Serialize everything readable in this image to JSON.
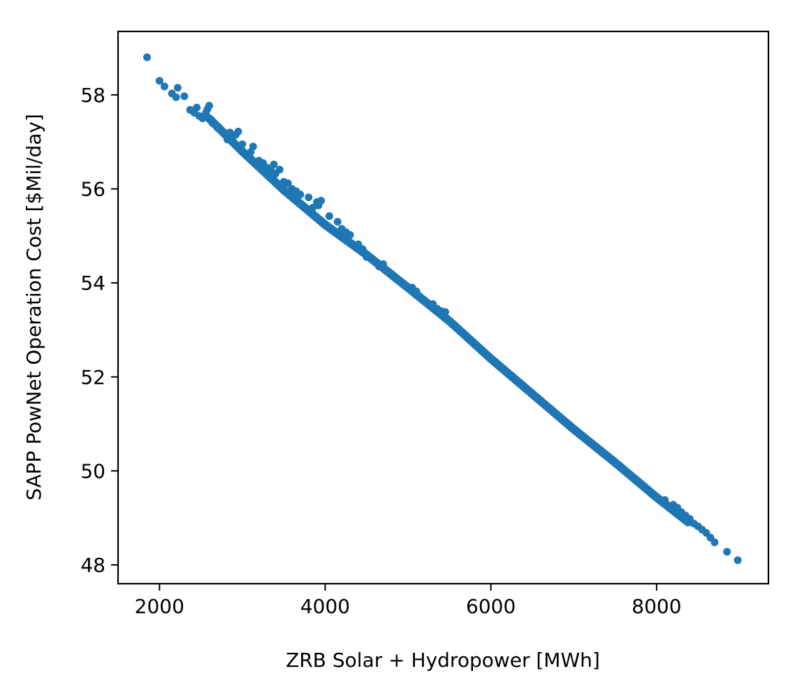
{
  "chart_data": {
    "type": "scatter",
    "title": "",
    "xlabel": "ZRB Solar + Hydropower [MWh]",
    "ylabel": "SAPP PowNet Operation Cost [$Mil/day]",
    "xlim": [
      1500,
      9350
    ],
    "ylim": [
      47.6,
      59.35
    ],
    "xticks": [
      2000,
      4000,
      6000,
      8000
    ],
    "xtick_labels": [
      "2000",
      "4000",
      "6000",
      "8000"
    ],
    "yticks": [
      48,
      50,
      52,
      54,
      56,
      58
    ],
    "ytick_labels": [
      "48",
      "50",
      "52",
      "54",
      "56",
      "58"
    ],
    "grid": false,
    "legend": "none",
    "color": "#1f77b4",
    "trend": {
      "x": [
        1850,
        2600,
        3000,
        3500,
        4000,
        4500,
        5000,
        5500,
        6000,
        6500,
        7000,
        7500,
        8000,
        8500,
        9000
      ],
      "y": [
        58.75,
        57.48,
        56.78,
        55.96,
        55.22,
        54.58,
        53.88,
        53.17,
        52.37,
        51.62,
        50.87,
        50.16,
        49.42,
        48.73,
        48.1
      ]
    },
    "points": {
      "x": [
        1850,
        2000,
        2060,
        2150,
        2200,
        2220,
        2300,
        2370,
        2420,
        2450,
        2480,
        2520,
        2560,
        2580,
        2600,
        2640,
        2700,
        2780,
        2820,
        2850,
        2880,
        2920,
        2950,
        3000,
        3100,
        3130,
        3200,
        3250,
        3300,
        3350,
        3380,
        3400,
        3450,
        3500,
        3550,
        3600,
        3650,
        3700,
        3800,
        3850,
        3900,
        3920,
        3950,
        4050,
        4150,
        4200,
        4250,
        4300,
        4400,
        4450,
        4500,
        4600,
        4650,
        4700,
        4750,
        4800,
        4900,
        4950,
        5050,
        5100,
        5200,
        5300,
        5350,
        5400,
        5450,
        5500,
        8100,
        8200,
        8250,
        8300,
        8350,
        8400,
        8450,
        8500,
        8550,
        8600,
        8650,
        8700,
        8850,
        8980
      ],
      "y": [
        58.8,
        58.3,
        58.18,
        58.03,
        57.95,
        58.15,
        57.97,
        57.68,
        57.62,
        57.73,
        57.55,
        57.5,
        57.62,
        57.7,
        57.77,
        57.4,
        57.3,
        57.18,
        57.05,
        57.2,
        57.1,
        57.15,
        57.22,
        56.95,
        56.78,
        56.9,
        56.6,
        56.55,
        56.45,
        56.38,
        56.52,
        56.32,
        56.41,
        56.15,
        56.12,
        56.0,
        55.95,
        55.88,
        55.82,
        55.6,
        55.72,
        55.65,
        55.75,
        55.42,
        55.3,
        55.15,
        55.08,
        55.02,
        54.82,
        54.72,
        54.55,
        54.45,
        54.35,
        54.4,
        54.25,
        54.18,
        54.05,
        53.95,
        53.9,
        53.82,
        53.62,
        53.55,
        53.45,
        53.4,
        53.38,
        53.18,
        49.38,
        49.28,
        49.22,
        49.12,
        49.05,
        48.98,
        48.88,
        48.82,
        48.75,
        48.68,
        48.58,
        48.48,
        48.28,
        48.1
      ]
    }
  }
}
